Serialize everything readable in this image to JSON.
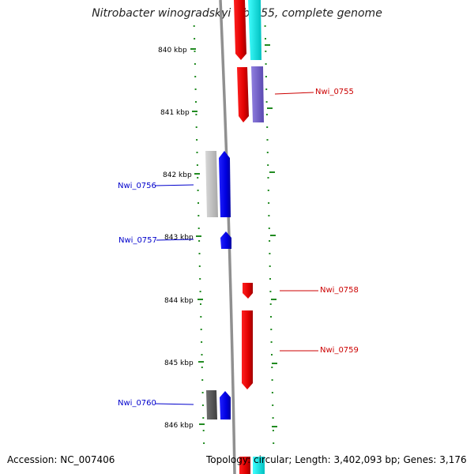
{
  "title": "Nitrobacter winogradskyi Nb-255, complete genome",
  "footer": {
    "accession": "Accession: NC_007406",
    "summary": "Topology: circular; Length: 3,402,093 bp; Genes: 3,176"
  },
  "ruler": {
    "labels": [
      "840 kbp",
      "841 kbp",
      "842 kbp",
      "843 kbp",
      "844 kbp",
      "845 kbp",
      "846 kbp"
    ]
  },
  "genes": [
    {
      "label": "Nwi_0755",
      "strand": "forward",
      "color": "#cc0000"
    },
    {
      "label": "Nwi_0756",
      "strand": "reverse",
      "color": "#0000cc"
    },
    {
      "label": "Nwi_0757",
      "strand": "reverse",
      "color": "#0000cc"
    },
    {
      "label": "Nwi_0758",
      "strand": "forward",
      "color": "#cc0000"
    },
    {
      "label": "Nwi_0759",
      "strand": "forward",
      "color": "#cc0000"
    },
    {
      "label": "Nwi_0760",
      "strand": "reverse",
      "color": "#0000cc"
    }
  ],
  "colors": {
    "forward_cds": "#ff0000",
    "reverse_cds": "#0000ff",
    "cyan_feature": "#00e5e5",
    "purple_feature": "#7a66cc",
    "grey_feature": "#bfbfbf",
    "dark_grey_feature": "#555555",
    "tick": "#228b22",
    "backbone": "#808080"
  }
}
